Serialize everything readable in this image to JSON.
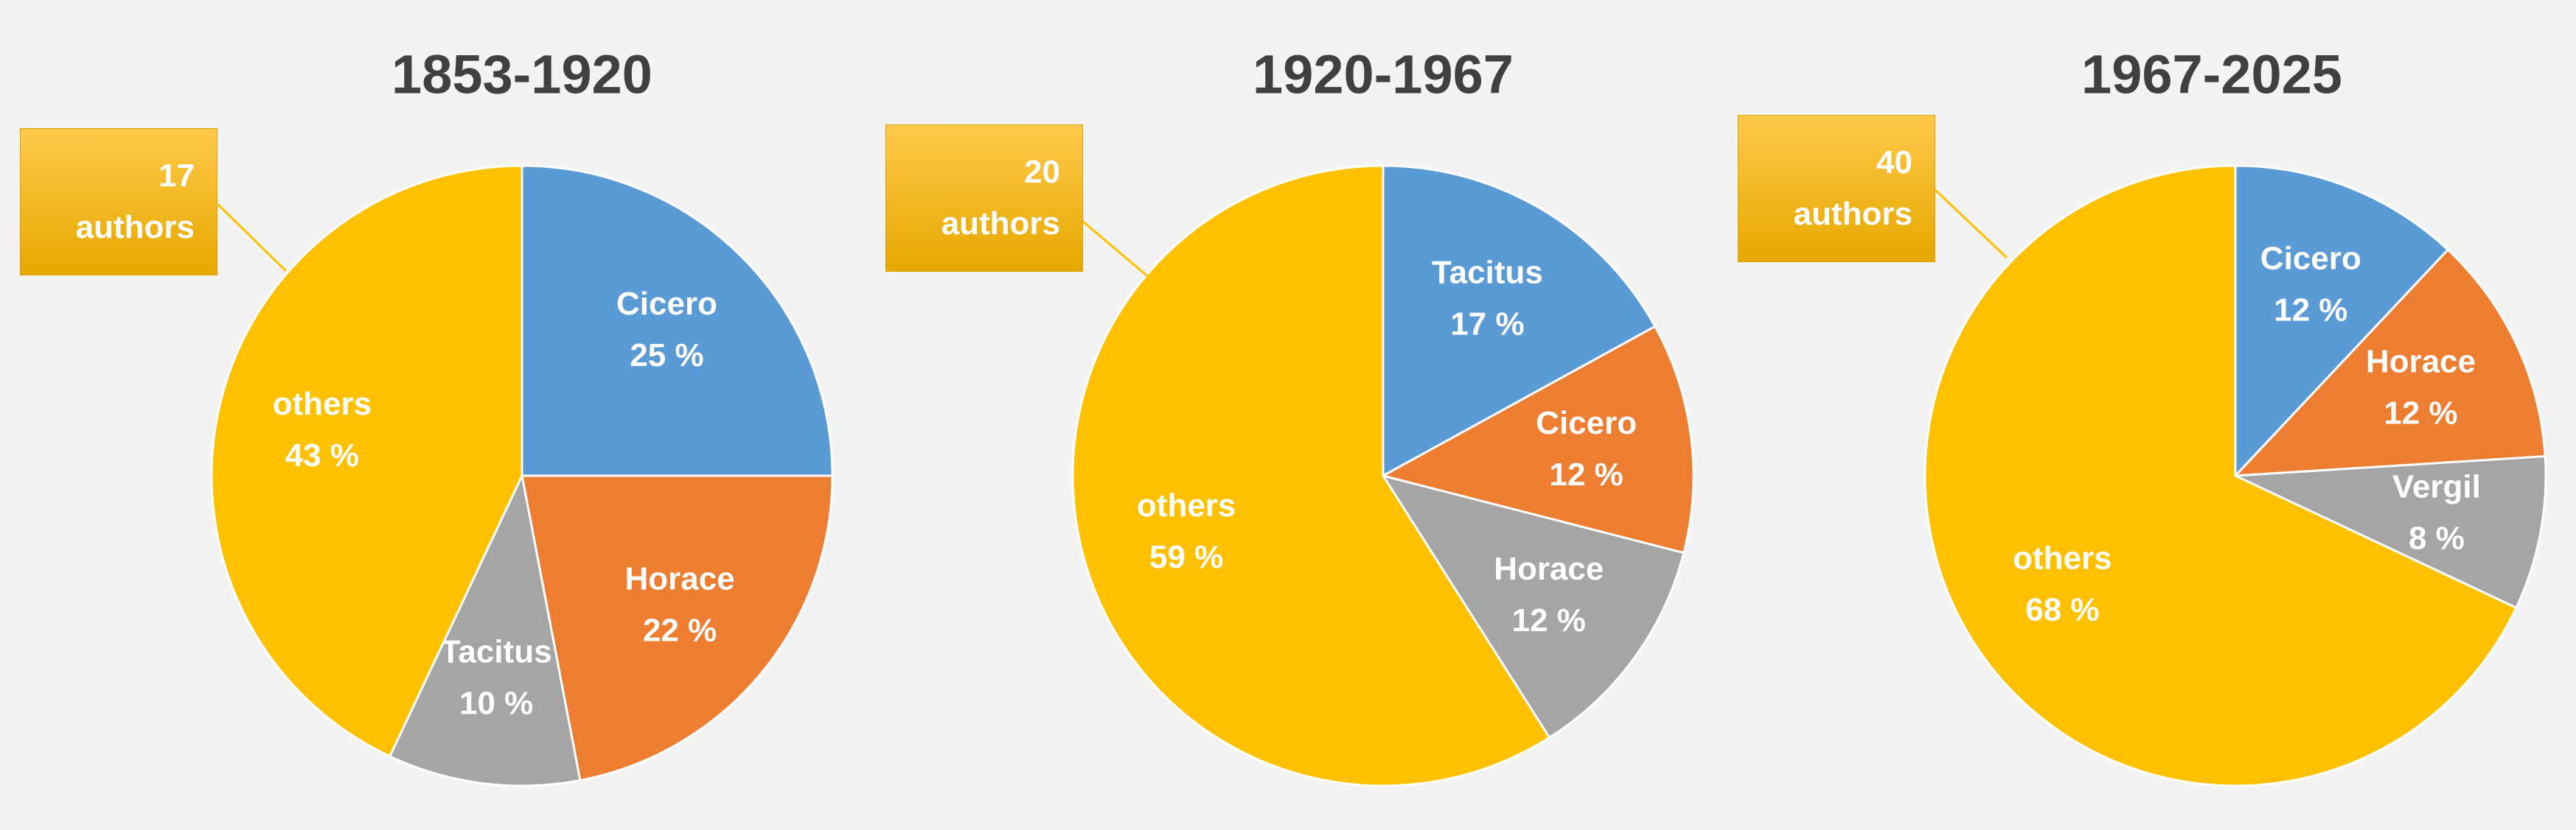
{
  "chart_data": [
    {
      "type": "pie",
      "title": "1853-1920",
      "categories": [
        "Cicero",
        "Horace",
        "Tacitus",
        "others"
      ],
      "values": [
        25,
        22,
        10,
        43
      ],
      "value_labels": [
        "25 %",
        "22 %",
        "10 %",
        "43 %"
      ],
      "colors": [
        "#5b9bd5",
        "#ed7d31",
        "#a5a5a5",
        "#ffc000"
      ],
      "annotation": "17 authors"
    },
    {
      "type": "pie",
      "title": "1920-1967",
      "categories": [
        "Tacitus",
        "Cicero",
        "Horace",
        "others"
      ],
      "values": [
        17,
        12,
        12,
        59
      ],
      "value_labels": [
        "17 %",
        "12 %",
        "12 %",
        "59 %"
      ],
      "colors": [
        "#5b9bd5",
        "#ed7d31",
        "#a5a5a5",
        "#ffc000"
      ],
      "annotation": "20 authors"
    },
    {
      "type": "pie",
      "title": "1967-2025",
      "categories": [
        "Cicero",
        "Horace",
        "Vergil",
        "others"
      ],
      "values": [
        12,
        12,
        8,
        68
      ],
      "value_labels": [
        "12 %",
        "12 %",
        "8 %",
        "68 %"
      ],
      "colors": [
        "#5b9bd5",
        "#ed7d31",
        "#a5a5a5",
        "#ffc000"
      ],
      "annotation": "40 authors"
    }
  ]
}
